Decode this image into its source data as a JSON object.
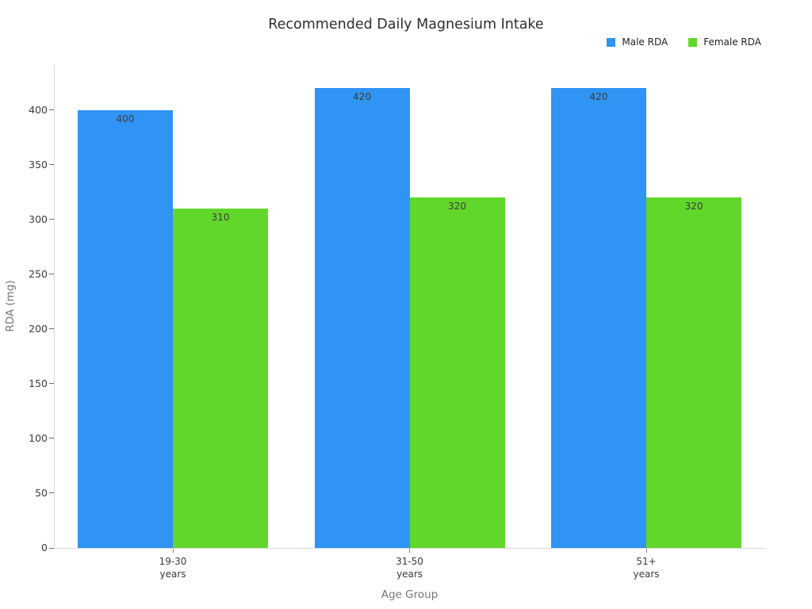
{
  "chart_data": {
    "type": "bar",
    "title": "Recommended Daily Magnesium Intake",
    "xlabel": "Age Group",
    "ylabel": "RDA (mg)",
    "categories": [
      "19-30\nyears",
      "31-50\nyears",
      "51+\nyears"
    ],
    "series": [
      {
        "name": "Male RDA",
        "color": "#2f94f3",
        "values": [
          400,
          420,
          420
        ]
      },
      {
        "name": "Female RDA",
        "color": "#62d72b",
        "values": [
          310,
          320,
          320
        ]
      }
    ],
    "bar_labels": [
      [
        "400",
        "420",
        "420"
      ],
      [
        "310",
        "320",
        "320"
      ]
    ],
    "ylim": [
      0,
      441
    ],
    "yticks": [
      0,
      50,
      100,
      150,
      200,
      250,
      300,
      350,
      400
    ],
    "grid": false,
    "legend_position": "top-right",
    "background": "#ffffff",
    "accent_colors": {
      "male": "#2f94f3",
      "female": "#62d72b"
    }
  }
}
